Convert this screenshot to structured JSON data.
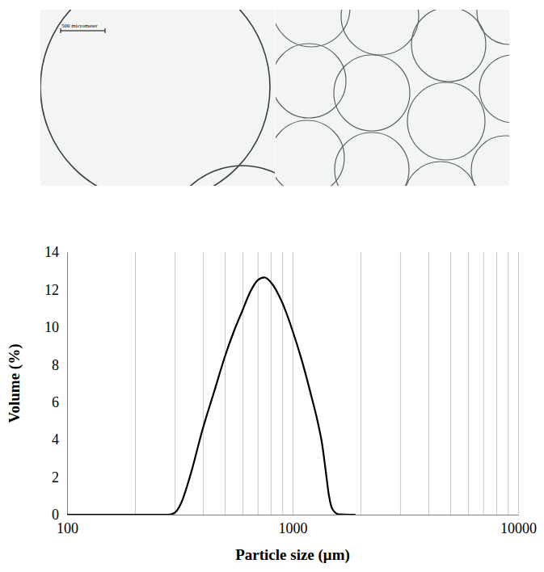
{
  "image_panel": {
    "scale_bar_label": "500 micrometer"
  },
  "chart_data": {
    "type": "line",
    "x_label": "Particle size (μm)",
    "y_label": "Volume (%)",
    "x": [
      100,
      200,
      280,
      300,
      320,
      350,
      400,
      450,
      500,
      550,
      600,
      650,
      700,
      750,
      800,
      900,
      1000,
      1100,
      1200,
      1300,
      1350,
      1400,
      1450,
      1500,
      1600,
      1800,
      1900
    ],
    "values": [
      0,
      0,
      0,
      0.1,
      0.6,
      2,
      4.6,
      6.6,
      8.4,
      9.8,
      10.9,
      11.9,
      12.5,
      12.65,
      12.4,
      11.3,
      9.8,
      8.2,
      6.5,
      4.8,
      3.8,
      2.4,
      1.0,
      0.3,
      0.02,
      0,
      0
    ],
    "color": "#000000",
    "log": "x",
    "grid": true,
    "xlim": [
      100,
      10000
    ],
    "xticks": [
      100,
      {
        "value": 200,
        "label": null
      },
      {
        "value": 300,
        "label": null
      },
      {
        "value": 400,
        "label": null
      },
      {
        "value": 500,
        "label": null
      },
      {
        "value": 600,
        "label": null
      },
      {
        "value": 700,
        "label": null
      },
      {
        "value": 800,
        "label": null
      },
      {
        "value": 900,
        "label": null
      },
      1000,
      {
        "value": 2000,
        "label": null
      },
      {
        "value": 3000,
        "label": null
      },
      {
        "value": 4000,
        "label": null
      },
      {
        "value": 5000,
        "label": null
      },
      {
        "value": 6000,
        "label": null
      },
      {
        "value": 7000,
        "label": null
      },
      {
        "value": 8000,
        "label": null
      },
      {
        "value": 9000,
        "label": null
      },
      10000
    ],
    "ylim": [
      0,
      14
    ],
    "yticks": [
      0,
      2,
      4,
      6,
      8,
      10,
      12,
      14
    ]
  }
}
